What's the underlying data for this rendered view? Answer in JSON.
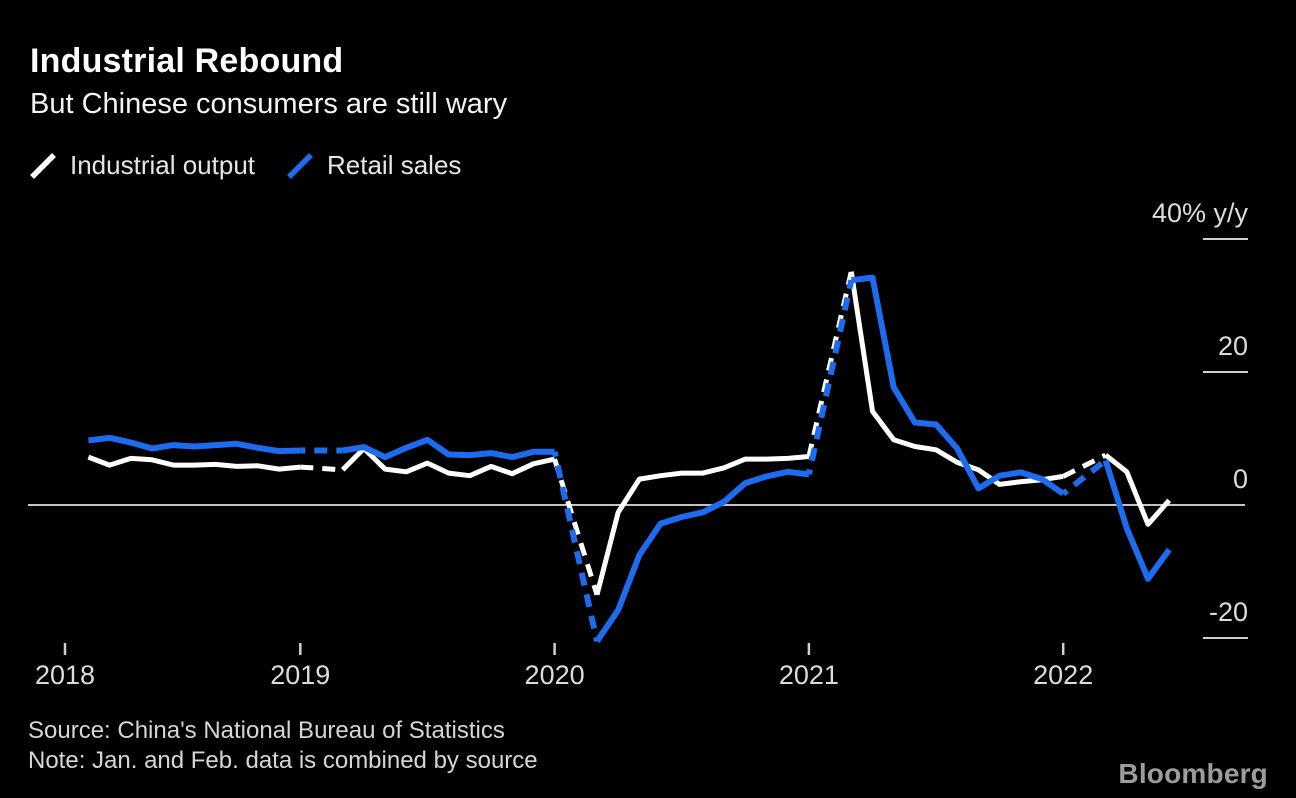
{
  "header": {
    "title": "Industrial Rebound",
    "subtitle": "But Chinese consumers are still wary"
  },
  "legend": [
    {
      "label": "Industrial output",
      "color": "#ffffff"
    },
    {
      "label": "Retail sales",
      "color": "#1d6bee"
    }
  ],
  "footer": {
    "source": "Source: China's National Bureau of Statistics",
    "note": "Note: Jan. and Feb. data is combined by source",
    "brand": "Bloomberg"
  },
  "chart_data": {
    "type": "line",
    "title": "Industrial Rebound",
    "subtitle": "But Chinese consumers are still wary",
    "unit": "% y/y",
    "grid": "zero-line-only",
    "legend_position": "top-left",
    "y_axis": {
      "side": "right",
      "range": [
        -27,
        44
      ],
      "ticks": [
        {
          "value": 40,
          "label": "40%",
          "unit": "y/y"
        },
        {
          "value": 20,
          "label": "20"
        },
        {
          "value": 0,
          "label": "0"
        },
        {
          "value": -20,
          "label": "-20"
        }
      ]
    },
    "x_axis": {
      "ticks": [
        2018,
        2019,
        2020,
        2021,
        2022
      ]
    },
    "dashed_rule": "segment entering each combined Jan.-Feb. point is dashed",
    "months": [
      "2018-02",
      "2018-03",
      "2018-04",
      "2018-05",
      "2018-06",
      "2018-07",
      "2018-08",
      "2018-09",
      "2018-10",
      "2018-11",
      "2018-12",
      "2019-02",
      "2019-03",
      "2019-04",
      "2019-05",
      "2019-06",
      "2019-07",
      "2019-08",
      "2019-09",
      "2019-10",
      "2019-11",
      "2019-12",
      "2020-02",
      "2020-03",
      "2020-04",
      "2020-05",
      "2020-06",
      "2020-07",
      "2020-08",
      "2020-09",
      "2020-10",
      "2020-11",
      "2020-12",
      "2021-02",
      "2021-03",
      "2021-04",
      "2021-05",
      "2021-06",
      "2021-07",
      "2021-08",
      "2021-09",
      "2021-10",
      "2021-11",
      "2021-12",
      "2022-02",
      "2022-03",
      "2022-04",
      "2022-05"
    ],
    "series": [
      {
        "name": "Industrial output",
        "color": "#ffffff",
        "values": [
          7.2,
          6.0,
          7.0,
          6.8,
          6.0,
          6.0,
          6.1,
          5.8,
          5.9,
          5.4,
          5.7,
          5.3,
          8.5,
          5.4,
          5.0,
          6.3,
          4.8,
          4.4,
          5.8,
          4.7,
          6.2,
          6.9,
          -13.5,
          -1.1,
          3.9,
          4.4,
          4.8,
          4.8,
          5.6,
          6.9,
          6.9,
          7.0,
          7.3,
          35.1,
          14.1,
          9.8,
          8.8,
          8.3,
          6.4,
          5.3,
          3.1,
          3.5,
          3.8,
          4.3,
          7.5,
          5.0,
          -2.9,
          0.7
        ]
      },
      {
        "name": "Retail sales",
        "color": "#1d6bee",
        "values": [
          9.7,
          10.1,
          9.4,
          8.5,
          9.0,
          8.8,
          9.0,
          9.2,
          8.6,
          8.1,
          8.2,
          8.2,
          8.7,
          7.2,
          8.6,
          9.8,
          7.6,
          7.5,
          7.8,
          7.2,
          8.0,
          8.0,
          -20.5,
          -15.8,
          -7.5,
          -2.8,
          -1.8,
          -1.1,
          0.5,
          3.3,
          4.3,
          5.0,
          4.6,
          33.8,
          34.2,
          17.7,
          12.4,
          12.1,
          8.5,
          2.5,
          4.4,
          4.9,
          3.9,
          1.7,
          6.7,
          -3.5,
          -11.1,
          -6.7
        ]
      }
    ]
  }
}
